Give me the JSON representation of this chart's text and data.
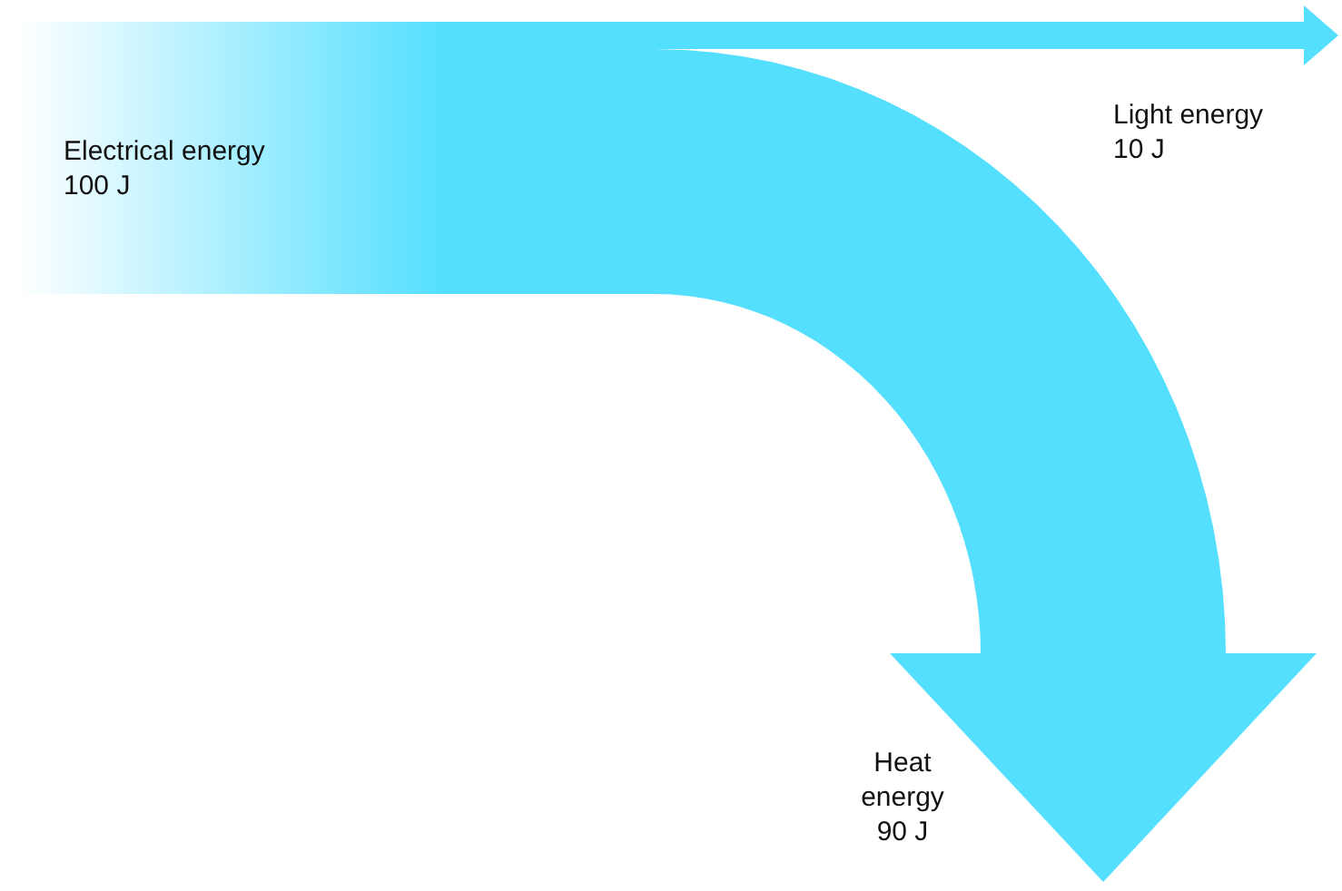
{
  "chart_data": {
    "type": "other",
    "categories": [
      "Electrical energy",
      "Light energy",
      "Heat energy"
    ],
    "values": [
      100,
      10,
      90
    ],
    "value_labels": [
      "100 J",
      "10 J",
      "90 J"
    ],
    "colors": [
      "#55dfff",
      "#55dfff",
      "#55dfff"
    ]
  }
}
